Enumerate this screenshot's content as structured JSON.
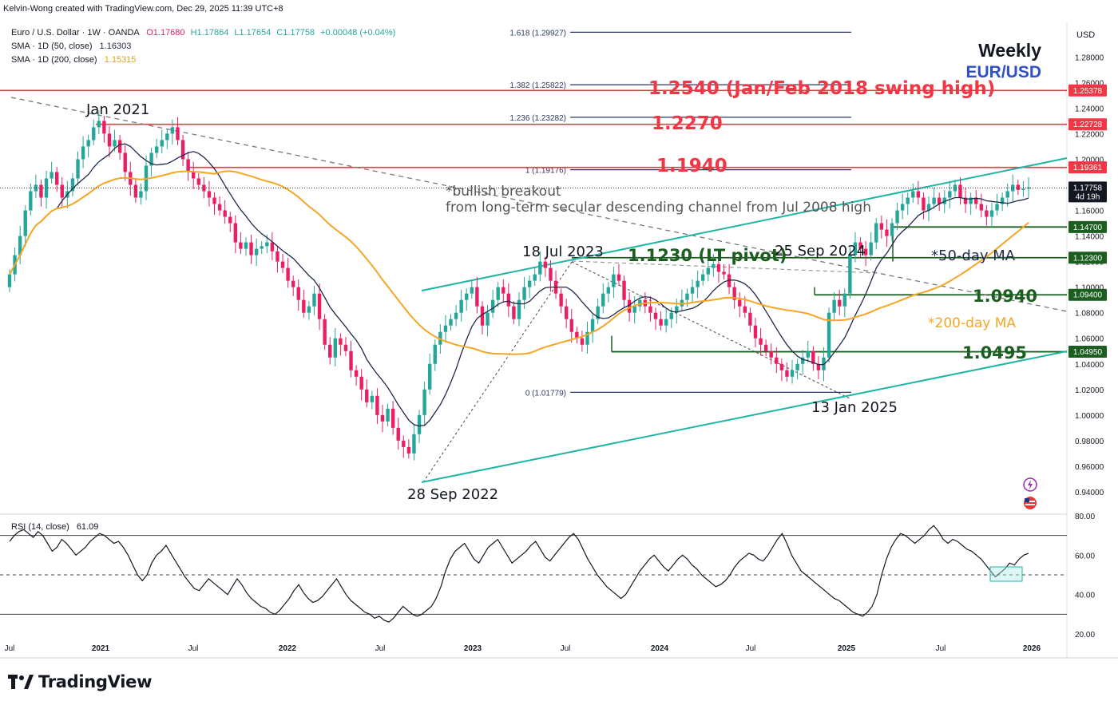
{
  "header": {
    "credit": "Kelvin-Wong created with TradingView.com, Dec 29, 2025 11:39 UTC+8",
    "symbol_line": "Euro / U.S. Dollar · 1W · OANDA",
    "ohlc": {
      "O": "O1.17680",
      "H": "H1.17864",
      "L": "L1.17654",
      "C": "C1.17758",
      "change": "+0.00048 (+0.04%)"
    },
    "sma50_label": "SMA · 1D (50, close)",
    "sma50_value": "1.16303",
    "sma200_label": "SMA · 1D (200, close)",
    "sma200_value": "1.15315",
    "currency": "USD"
  },
  "brand": {
    "name": "TradingView"
  },
  "timeframe_label": "Weekly",
  "pair_label": "EUR/USD",
  "colors": {
    "up": "#26a69a",
    "down": "#e91e63",
    "sma50": "#1e2a4a",
    "sma200": "#f5a623",
    "resistance": "#f23645",
    "support": "#1b5e20",
    "channel": "#1fb5a4",
    "fib": "#2a3a60"
  },
  "annotations": {
    "jan2021": "Jan 2021",
    "sep2022": "28 Sep 2022",
    "jul2023": "18 Jul 2023",
    "sep2024": "25 Sep 2024",
    "jan2025": "13 Jan 2025",
    "breakout_1": "*bullish breakout",
    "breakout_2": "from long-term secular descending channel from Jul 2008 high",
    "ma50": "*50-day MA",
    "ma200": "*200-day MA",
    "r1": "1.2540 (Jan/Feb 2018 swing high)",
    "r2": "1.2270",
    "r3": "1.1940",
    "pivot": "1.1230 (LT pivot)",
    "s1": "1.0940",
    "s2": "1.0495"
  },
  "fib_levels": [
    {
      "label": "1.618 (1.29927)",
      "value": 1.29927
    },
    {
      "label": "1.382 (1.25822)",
      "value": 1.25822
    },
    {
      "label": "1.236 (1.23282)",
      "value": 1.23282
    },
    {
      "label": "1 (1.19176)",
      "value": 1.19176
    },
    {
      "label": "0 (1.01779)",
      "value": 1.01779
    }
  ],
  "price_tags": [
    {
      "text": "1.25378",
      "value": 1.25378,
      "kind": "resistance"
    },
    {
      "text": "1.22728",
      "value": 1.22728,
      "kind": "resistance"
    },
    {
      "text": "1.19361",
      "value": 1.19361,
      "kind": "resistance"
    },
    {
      "text": "1.17758",
      "sub": "4d 19h",
      "value": 1.17758,
      "kind": "last"
    },
    {
      "text": "1.14700",
      "value": 1.147,
      "kind": "support"
    },
    {
      "text": "1.12300",
      "value": 1.123,
      "kind": "support"
    },
    {
      "text": "1.09400",
      "value": 1.094,
      "kind": "support"
    },
    {
      "text": "1.04950",
      "value": 1.0495,
      "kind": "support"
    }
  ],
  "rsi": {
    "label": "RSI (14, close)",
    "value": "61.09",
    "ticks": [
      "80.00",
      "60.00",
      "40.00",
      "20.00"
    ],
    "range": [
      20,
      80
    ],
    "bands": [
      30,
      50,
      70
    ],
    "series": [
      67,
      70,
      72,
      73,
      71,
      69,
      72,
      70,
      66,
      62,
      64,
      68,
      66,
      63,
      60,
      62,
      64,
      67,
      69,
      71,
      70,
      68,
      66,
      67,
      64,
      60,
      55,
      50,
      47,
      50,
      56,
      60,
      62,
      65,
      61,
      57,
      53,
      49,
      46,
      43,
      42,
      45,
      48,
      46,
      44,
      42,
      40,
      44,
      48,
      45,
      41,
      38,
      36,
      34,
      33,
      31,
      30,
      32,
      35,
      38,
      42,
      45,
      41,
      38,
      36,
      37,
      39,
      42,
      45,
      48,
      44,
      40,
      37,
      35,
      33,
      31,
      30,
      28,
      29,
      27,
      26,
      28,
      31,
      34,
      32,
      30,
      29,
      30,
      32,
      34,
      38,
      44,
      52,
      58,
      62,
      64,
      66,
      62,
      58,
      56,
      60,
      64,
      66,
      68,
      64,
      60,
      56,
      58,
      60,
      62,
      65,
      67,
      63,
      59,
      57,
      60,
      63,
      66,
      69,
      71,
      68,
      63,
      58,
      54,
      50,
      47,
      44,
      42,
      40,
      38,
      40,
      44,
      48,
      52,
      55,
      58,
      60,
      57,
      54,
      52,
      55,
      58,
      60,
      58,
      55,
      53,
      50,
      48,
      46,
      44,
      45,
      47,
      50,
      54,
      57,
      59,
      61,
      60,
      58,
      57,
      60,
      64,
      68,
      71,
      66,
      60,
      56,
      52,
      50,
      48,
      46,
      44,
      42,
      40,
      38,
      37,
      35,
      33,
      31,
      30,
      29,
      31,
      34,
      40,
      50,
      58,
      64,
      68,
      71,
      70,
      68,
      66,
      68,
      70,
      73,
      75,
      72,
      68,
      66,
      68,
      67,
      65,
      63,
      62,
      60,
      58,
      55,
      52,
      49,
      51,
      53,
      56,
      55,
      58,
      60,
      61
    ]
  },
  "chart_data": {
    "type": "candlestick",
    "title": "Euro / U.S. Dollar · 1W · OANDA",
    "xlabel": "",
    "ylabel": "USD",
    "ylim": [
      0.925,
      1.307
    ],
    "x_ticks": [
      "Jul",
      "2021",
      "Jul",
      "2022",
      "Jul",
      "2023",
      "Jul",
      "2024",
      "Jul",
      "2025",
      "Jul",
      "2026"
    ],
    "y_ticks": [
      "1.28000",
      "1.26000",
      "1.24000",
      "1.22000",
      "1.20000",
      "1.18000",
      "1.16000",
      "1.14000",
      "1.12000",
      "1.10000",
      "1.08000",
      "1.06000",
      "1.04000",
      "1.02000",
      "1.00000",
      "0.98000",
      "0.96000",
      "0.94000"
    ],
    "closes": [
      1.11,
      1.125,
      1.14,
      1.16,
      1.175,
      1.18,
      1.17,
      1.185,
      1.19,
      1.18,
      1.17,
      1.175,
      1.185,
      1.2,
      1.21,
      1.215,
      1.225,
      1.23,
      1.22,
      1.21,
      1.215,
      1.205,
      1.19,
      1.18,
      1.17,
      1.175,
      1.195,
      1.205,
      1.21,
      1.215,
      1.22,
      1.225,
      1.215,
      1.2,
      1.19,
      1.185,
      1.18,
      1.175,
      1.17,
      1.165,
      1.16,
      1.155,
      1.15,
      1.135,
      1.13,
      1.135,
      1.125,
      1.13,
      1.132,
      1.135,
      1.128,
      1.12,
      1.115,
      1.105,
      1.1,
      1.09,
      1.08,
      1.085,
      1.095,
      1.075,
      1.055,
      1.045,
      1.06,
      1.055,
      1.05,
      1.035,
      1.03,
      1.02,
      1.01,
      1.015,
      1.0,
      0.995,
      1.005,
      0.99,
      0.98,
      0.975,
      0.97,
      0.985,
      1.0,
      1.02,
      1.04,
      1.055,
      1.065,
      1.07,
      1.075,
      1.08,
      1.09,
      1.095,
      1.1,
      1.085,
      1.07,
      1.08,
      1.09,
      1.1,
      1.095,
      1.085,
      1.075,
      1.09,
      1.1,
      1.105,
      1.11,
      1.12,
      1.115,
      1.105,
      1.095,
      1.085,
      1.075,
      1.065,
      1.06,
      1.055,
      1.065,
      1.075,
      1.085,
      1.095,
      1.1,
      1.11,
      1.105,
      1.09,
      1.08,
      1.085,
      1.09,
      1.085,
      1.08,
      1.075,
      1.07,
      1.075,
      1.08,
      1.085,
      1.09,
      1.095,
      1.1,
      1.105,
      1.11,
      1.115,
      1.118,
      1.112,
      1.11,
      1.1,
      1.09,
      1.085,
      1.08,
      1.07,
      1.06,
      1.055,
      1.05,
      1.045,
      1.04,
      1.035,
      1.03,
      1.035,
      1.04,
      1.045,
      1.05,
      1.04,
      1.035,
      1.045,
      1.08,
      1.09,
      1.085,
      1.095,
      1.125,
      1.135,
      1.13,
      1.125,
      1.135,
      1.15,
      1.145,
      1.14,
      1.15,
      1.16,
      1.165,
      1.17,
      1.175,
      1.17,
      1.16,
      1.165,
      1.17,
      1.165,
      1.17,
      1.175,
      1.18,
      1.17,
      1.165,
      1.17,
      1.165,
      1.16,
      1.155,
      1.16,
      1.165,
      1.17,
      1.175,
      1.18,
      1.176,
      1.177,
      1.178
    ]
  }
}
